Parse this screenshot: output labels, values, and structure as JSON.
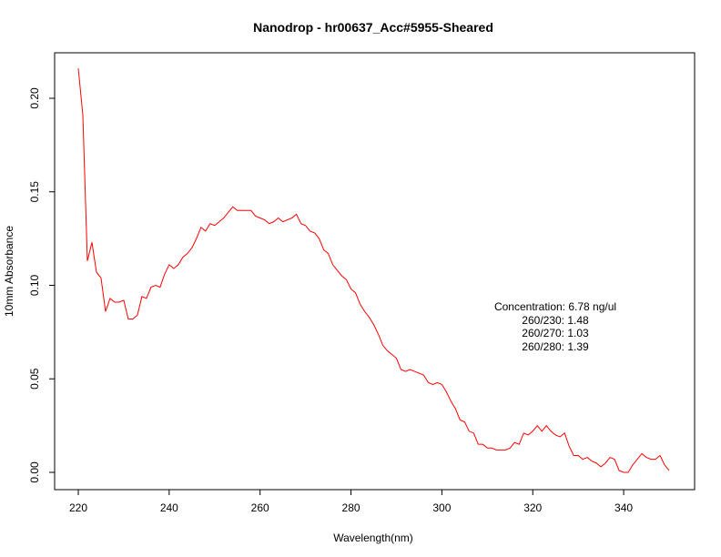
{
  "chart_data": {
    "type": "line",
    "title": "Nanodrop - hr00637_Acc#5955-Sheared",
    "xlabel": "Wavelength(nm)",
    "ylabel": "10mm Absorbance",
    "xlim": [
      220,
      350
    ],
    "ylim": [
      0,
      0.215
    ],
    "x_ticks": [
      220,
      240,
      260,
      280,
      300,
      320,
      340
    ],
    "x_tick_labels": [
      "220",
      "240",
      "260",
      "280",
      "300",
      "320",
      "340"
    ],
    "y_ticks": [
      0.0,
      0.05,
      0.1,
      0.15,
      0.2
    ],
    "y_tick_labels": [
      "0.00",
      "0.05",
      "0.10",
      "0.15",
      "0.20"
    ],
    "grid": false,
    "series": [
      {
        "color": "#ff0000",
        "x": [
          220,
          221,
          222,
          223,
          224,
          225,
          226,
          227,
          228,
          229,
          230,
          231,
          232,
          233,
          234,
          235,
          236,
          237,
          238,
          239,
          240,
          241,
          242,
          243,
          244,
          245,
          246,
          247,
          248,
          249,
          250,
          251,
          252,
          253,
          254,
          255,
          256,
          257,
          258,
          259,
          260,
          261,
          262,
          263,
          264,
          265,
          266,
          267,
          268,
          269,
          270,
          271,
          272,
          273,
          274,
          275,
          276,
          277,
          278,
          279,
          280,
          281,
          282,
          283,
          284,
          285,
          286,
          287,
          288,
          289,
          290,
          291,
          292,
          293,
          294,
          295,
          296,
          297,
          298,
          299,
          300,
          301,
          302,
          303,
          304,
          305,
          306,
          307,
          308,
          309,
          310,
          311,
          312,
          313,
          314,
          315,
          316,
          317,
          318,
          319,
          320,
          321,
          322,
          323,
          324,
          325,
          326,
          327,
          328,
          329,
          330,
          331,
          332,
          333,
          334,
          335,
          336,
          337,
          338,
          339,
          340,
          341,
          342,
          343,
          344,
          345,
          346,
          347,
          348,
          349,
          350
        ],
        "values": [
          0.216,
          0.191,
          0.113,
          0.123,
          0.107,
          0.104,
          0.086,
          0.093,
          0.091,
          0.091,
          0.092,
          0.082,
          0.082,
          0.084,
          0.094,
          0.093,
          0.099,
          0.1,
          0.099,
          0.106,
          0.111,
          0.109,
          0.111,
          0.115,
          0.117,
          0.12,
          0.125,
          0.131,
          0.129,
          0.133,
          0.132,
          0.134,
          0.136,
          0.139,
          0.142,
          0.14,
          0.14,
          0.14,
          0.14,
          0.137,
          0.136,
          0.135,
          0.133,
          0.134,
          0.136,
          0.134,
          0.135,
          0.136,
          0.138,
          0.133,
          0.132,
          0.129,
          0.128,
          0.125,
          0.119,
          0.117,
          0.111,
          0.108,
          0.105,
          0.103,
          0.098,
          0.096,
          0.09,
          0.086,
          0.083,
          0.079,
          0.074,
          0.068,
          0.065,
          0.063,
          0.061,
          0.055,
          0.054,
          0.055,
          0.054,
          0.053,
          0.052,
          0.048,
          0.047,
          0.048,
          0.047,
          0.043,
          0.038,
          0.034,
          0.028,
          0.027,
          0.022,
          0.021,
          0.015,
          0.015,
          0.013,
          0.013,
          0.012,
          0.012,
          0.012,
          0.013,
          0.016,
          0.015,
          0.021,
          0.02,
          0.022,
          0.025,
          0.022,
          0.025,
          0.022,
          0.02,
          0.019,
          0.021,
          0.014,
          0.009,
          0.009,
          0.007,
          0.008,
          0.006,
          0.005,
          0.003,
          0.005,
          0.008,
          0.007,
          0.001,
          0.0,
          0.0,
          0.004,
          0.007,
          0.01,
          0.008,
          0.007,
          0.007,
          0.009,
          0.004,
          0.001
        ]
      }
    ],
    "annotations": [
      "Concentration: 6.78 ng/ul",
      "260/230: 1.48",
      "260/270: 1.03",
      "260/280: 1.39"
    ]
  }
}
